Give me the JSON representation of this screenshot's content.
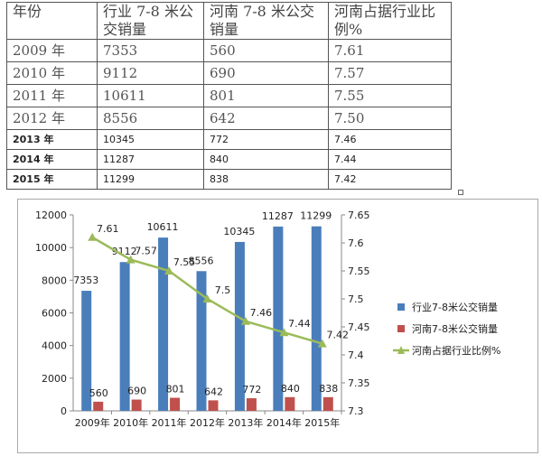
{
  "table": {
    "headers": [
      "年份",
      "行业 7-8 米公交销量",
      "河南 7-8 米公交销量",
      "河南占据行业比例%"
    ],
    "rows": [
      [
        "2009 年",
        "7353",
        "560",
        "7.61"
      ],
      [
        "2010 年",
        "9112",
        "690",
        "7.57"
      ],
      [
        "2011 年",
        "10611",
        "801",
        "7.55"
      ],
      [
        "2012 年",
        "8556",
        "642",
        "7.50"
      ],
      [
        "2013 年",
        "10345",
        "772",
        "7.46"
      ],
      [
        "2014 年",
        "11287",
        "840",
        "7.44"
      ],
      [
        "2015 年",
        "11299",
        "838",
        "7.42"
      ]
    ]
  },
  "chart_data": {
    "type": "bar",
    "categories": [
      "2009年",
      "2010年",
      "2011年",
      "2012年",
      "2013年",
      "2014年",
      "2015年"
    ],
    "series": [
      {
        "name": "行业7-8米公交销量",
        "type": "bar",
        "axis": "left",
        "color": "#4a7ebb",
        "values": [
          7353,
          9112,
          10611,
          8556,
          10345,
          11287,
          11299
        ]
      },
      {
        "name": "河南7-8米公交销量",
        "type": "bar",
        "axis": "left",
        "color": "#c0504d",
        "values": [
          560,
          690,
          801,
          642,
          772,
          840,
          838
        ]
      },
      {
        "name": "河南占据行业比例%",
        "type": "line",
        "axis": "right",
        "color": "#9bbb59",
        "values": [
          7.61,
          7.57,
          7.55,
          7.5,
          7.46,
          7.44,
          7.42
        ]
      }
    ],
    "y_left": {
      "min": 0,
      "max": 12000,
      "step": 2000,
      "ticks": [
        "0",
        "2000",
        "4000",
        "6000",
        "8000",
        "10000",
        "12000"
      ]
    },
    "y_right": {
      "min": 7.3,
      "max": 7.65,
      "step": 0.05,
      "ticks": [
        "7.3",
        "7.35",
        "7.4",
        "7.45",
        "7.5",
        "7.55",
        "7.6",
        "7.65"
      ]
    },
    "grid": false,
    "legend_position": "right"
  }
}
